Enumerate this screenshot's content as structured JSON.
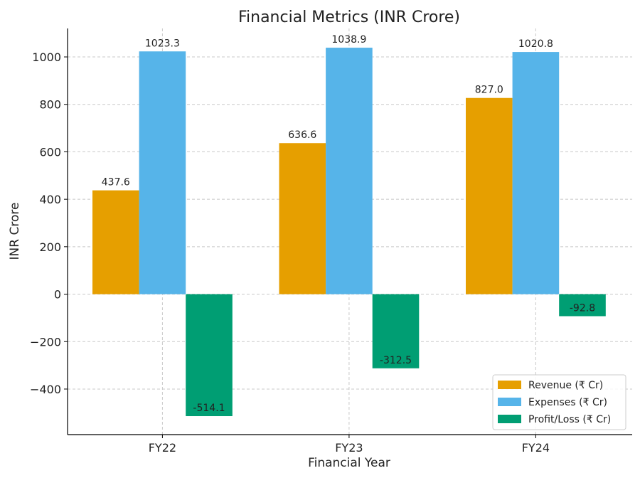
{
  "chart_data": {
    "type": "bar",
    "title": "Financial Metrics (INR Crore)",
    "xlabel": "Financial Year",
    "ylabel": "INR Crore",
    "categories": [
      "FY22",
      "FY23",
      "FY24"
    ],
    "series": [
      {
        "name": "Revenue (₹ Cr)",
        "values": [
          437.6,
          636.6,
          827.0
        ],
        "labels": [
          "437.6",
          "636.6",
          "827.0"
        ],
        "color": "#E69F00"
      },
      {
        "name": "Expenses (₹ Cr)",
        "values": [
          1023.3,
          1038.9,
          1020.8
        ],
        "labels": [
          "1023.3",
          "1038.9",
          "1020.8"
        ],
        "color": "#56B4E9"
      },
      {
        "name": "Profit/Loss (₹ Cr)",
        "values": [
          -514.1,
          -312.5,
          -92.8
        ],
        "labels": [
          "-514.1",
          "-312.5",
          "-92.8"
        ],
        "color": "#009E73"
      }
    ],
    "ylim": [
      -592,
      1120
    ],
    "yticks": [
      -400,
      -200,
      0,
      200,
      400,
      600,
      800,
      1000
    ],
    "ytick_labels": [
      "−400",
      "−200",
      "0",
      "200",
      "400",
      "600",
      "800",
      "1000"
    ],
    "grid": true,
    "legend_position": "bottom-right"
  }
}
